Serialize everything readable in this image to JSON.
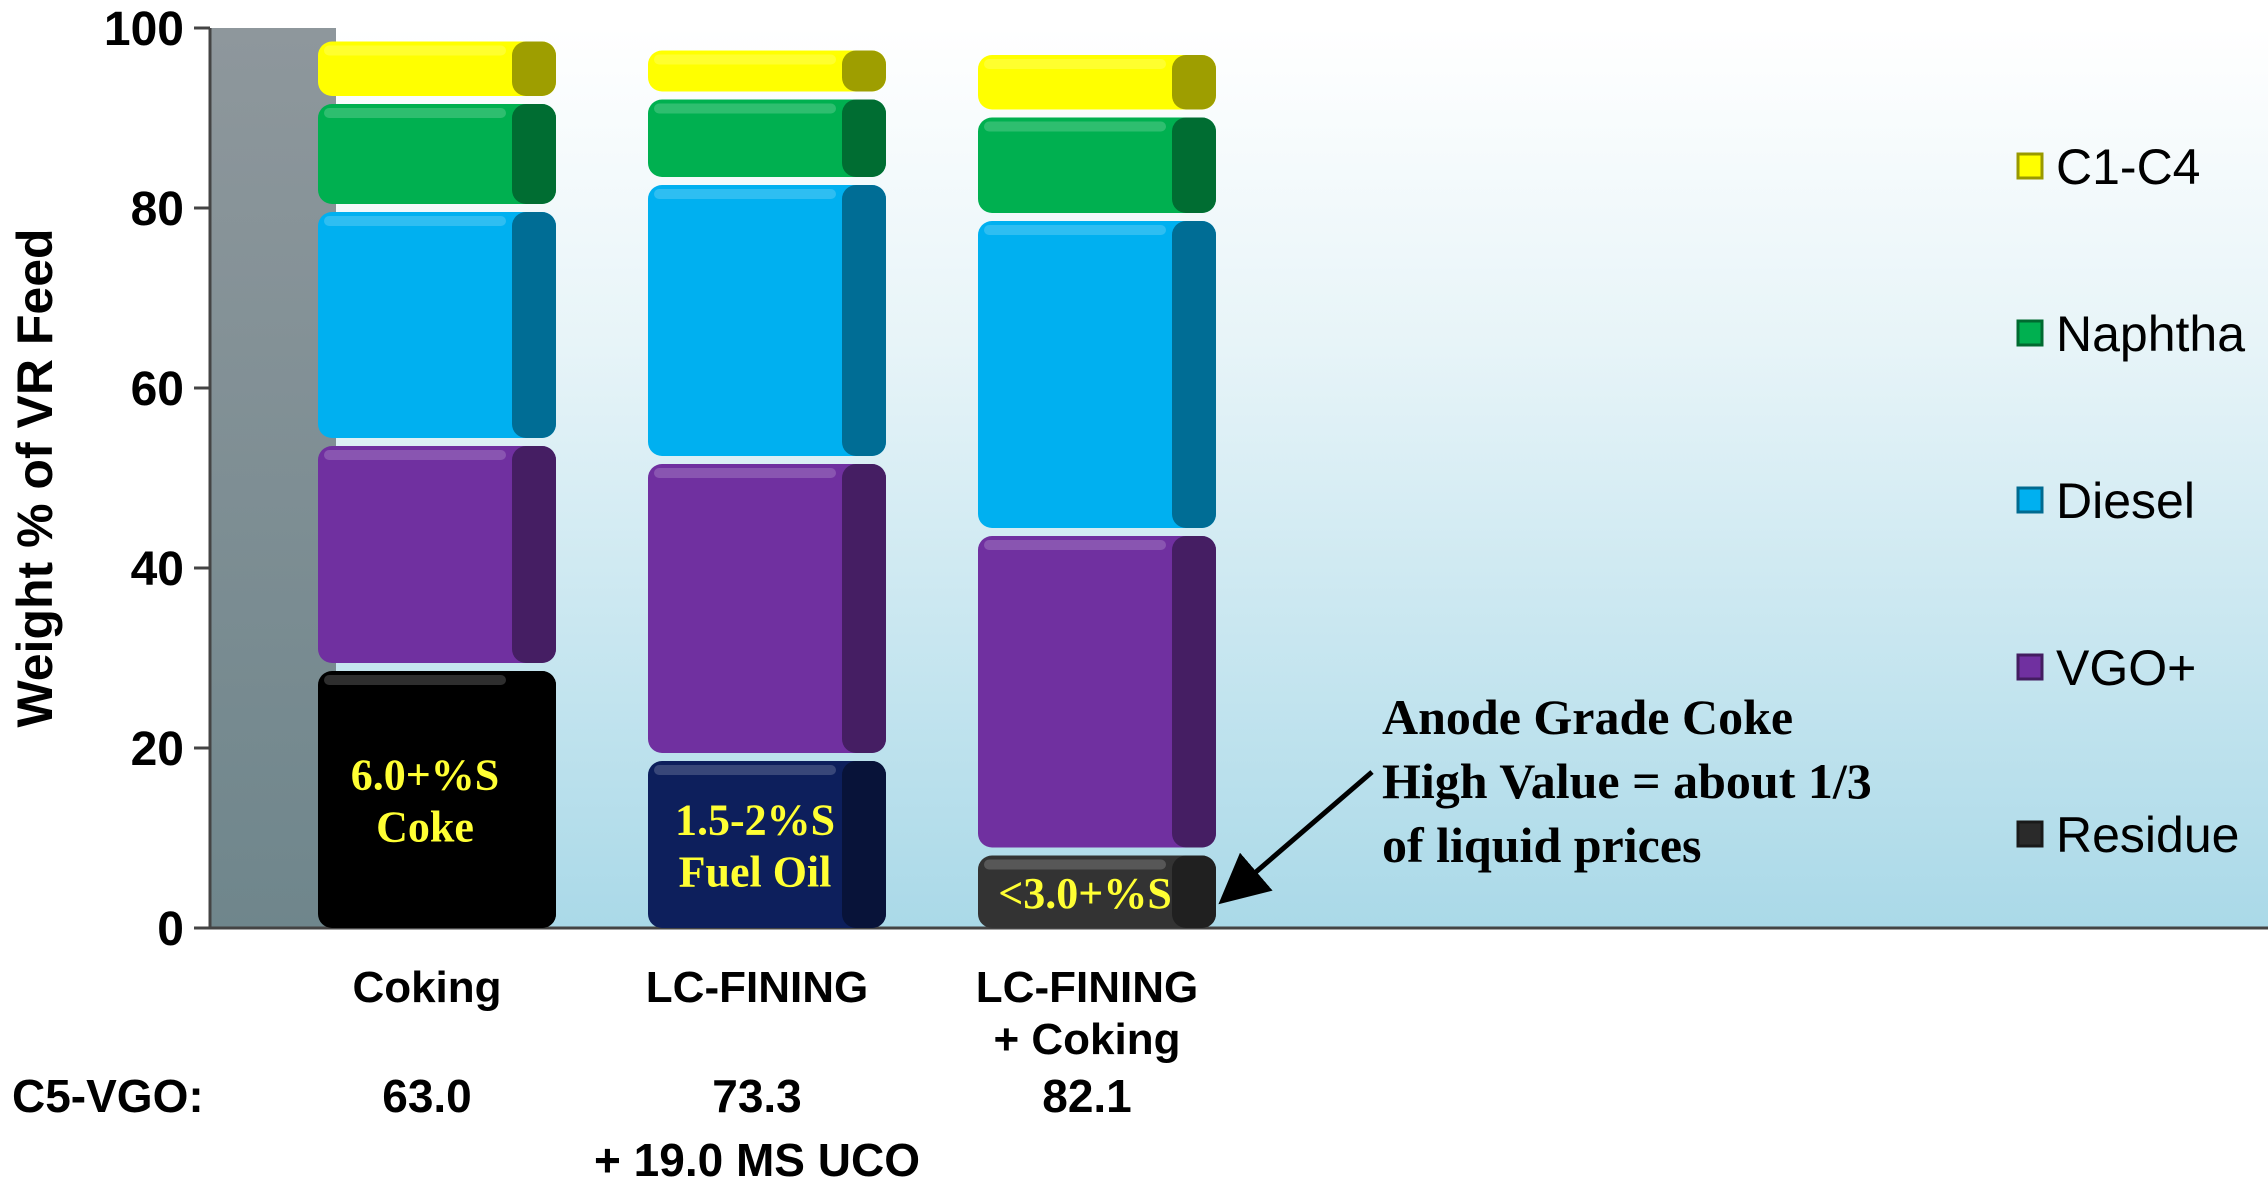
{
  "chart_data": {
    "type": "bar",
    "stacked": true,
    "ylabel": "Weight % of VR Feed",
    "ylim": [
      0,
      100
    ],
    "yticks": [
      0,
      20,
      40,
      60,
      80,
      100
    ],
    "categories": [
      [
        "Coking"
      ],
      [
        "LC-FINING"
      ],
      [
        "LC-FINING",
        "+ Coking"
      ]
    ],
    "series": [
      {
        "name": "Residue",
        "color": "#2a2a2a",
        "values": [
          29,
          19,
          8.5
        ]
      },
      {
        "name": "VGO+",
        "color": "#7030a0",
        "values": [
          25,
          33,
          35.5
        ]
      },
      {
        "name": "Diesel",
        "color": "#00b0f0",
        "values": [
          26,
          31,
          35
        ]
      },
      {
        "name": "Naphtha",
        "color": "#00b050",
        "values": [
          12,
          9.5,
          11.5
        ]
      },
      {
        "name": "C1-C4",
        "color": "#ffff00",
        "values": [
          6.5,
          5,
          6.5
        ]
      }
    ],
    "residue_fill_colors": [
      "#000000",
      "#0d1f5c",
      "#333333"
    ],
    "legend": {
      "position": "right",
      "order": [
        "C1-C4",
        "Naphtha",
        "Diesel",
        "VGO+",
        "Residue"
      ]
    },
    "segment_labels": [
      [
        "6.0+%S",
        "Coke"
      ],
      [
        "1.5-2%S",
        "Fuel Oil"
      ],
      [
        "<3.0+%S"
      ]
    ],
    "c5_vgo": {
      "label": "C5-VGO:",
      "values": [
        [
          "63.0"
        ],
        [
          "73.3",
          "+ 19.0 MS UCO"
        ],
        [
          "82.1"
        ]
      ]
    },
    "annotation": {
      "lines": [
        "Anode Grade Coke",
        "High Value = about 1/3",
        "of liquid prices"
      ]
    },
    "grid": false
  }
}
